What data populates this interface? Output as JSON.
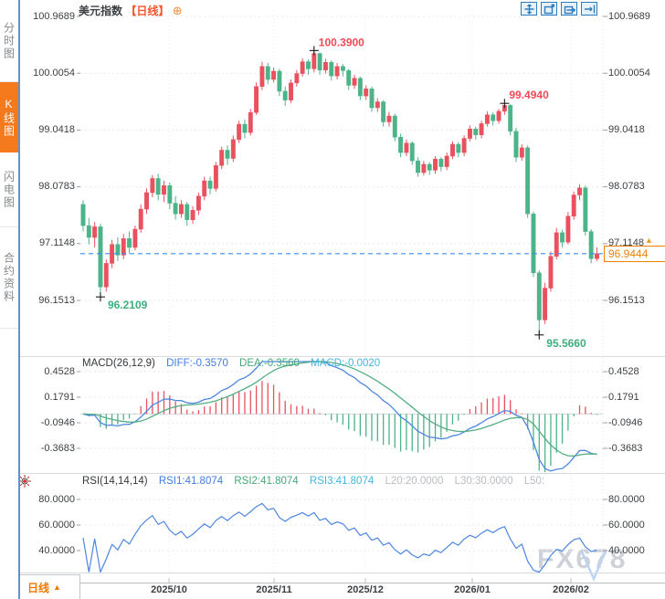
{
  "sidebar": {
    "tabs": [
      {
        "label": "分时图",
        "active": false
      },
      {
        "label": "K线图",
        "active": true
      },
      {
        "label": "闪电图",
        "active": false
      },
      {
        "label": "合约资料",
        "active": false
      }
    ]
  },
  "header": {
    "instrument": "美元指数",
    "period_tag": "【日线】",
    "add_icon": "⊕"
  },
  "toolbar": {
    "icons": [
      "pan-tool",
      "zoom-area",
      "zoom-bars",
      "goto-latest"
    ]
  },
  "main_chart": {
    "y_ticks": [
      "100.9689",
      "100.0054",
      "99.0418",
      "98.0783",
      "97.1148",
      "96.1513"
    ],
    "current_price": "96.9444",
    "up_arrow": "▲",
    "x_labels": [
      "2025/10",
      "2025/11",
      "2025/12",
      "2026/01",
      "2026/02"
    ]
  },
  "macd_panel": {
    "title": "MACD(26,12,9)",
    "diff_label": "DIFF:-0.3570",
    "dea_label": "DEA:-0.3560",
    "macd_label": "MACD:-0.0020",
    "y_ticks": [
      "0.4528",
      "0.1791",
      "-0.0946",
      "-0.3683"
    ]
  },
  "rsi_panel": {
    "title": "RSI(14,14,14)",
    "rsi1_label": "RSI1:41.8074",
    "rsi2_label": "RSI2:41.8074",
    "rsi3_label": "RSI3:41.8074",
    "l20_label": "L20:20.0000",
    "l30_label": "L30:30.0000",
    "l50_label": "L50:",
    "y_ticks": [
      "80.0000",
      "60.0000",
      "40.0000"
    ]
  },
  "bottom_bar": {
    "period": "日线",
    "arrow": "▲"
  },
  "watermark": "FX678",
  "colors": {
    "up": "#e9515e",
    "down": "#4db389",
    "diff_line": "#4d86e0",
    "dea_line": "#52ae82",
    "rsi_line": "#4d86e0",
    "current_line": "#3b8df0",
    "accent_orange": "#f07800",
    "annotation_high": "#ef4a55",
    "annotation_low": "#3fae7e"
  },
  "chart_data": {
    "type": "candlestick",
    "title": "美元指数 日线",
    "x_labels": [
      "2025/10",
      "2025/11",
      "2025/12",
      "2026/01",
      "2026/02"
    ],
    "y_ticks_values": [
      100.9689,
      100.0054,
      99.0418,
      98.0783,
      97.1148,
      96.1513
    ],
    "y_range": [
      95.3,
      101.2
    ],
    "current_price": 96.9444,
    "annotations": [
      {
        "text": "100.3900",
        "value": 100.39,
        "candle": 40,
        "kind": "high"
      },
      {
        "text": "99.4940",
        "value": 99.494,
        "candle": 73,
        "kind": "high"
      },
      {
        "text": "96.2109",
        "value": 96.2109,
        "candle": 3,
        "kind": "low"
      },
      {
        "text": "95.5660",
        "value": 95.566,
        "candle": 79,
        "kind": "low"
      }
    ],
    "candles_ohlc": [
      [
        97.78,
        97.85,
        97.32,
        97.42
      ],
      [
        97.42,
        97.55,
        97.1,
        97.22
      ],
      [
        97.22,
        97.48,
        97.05,
        97.4
      ],
      [
        97.4,
        97.45,
        96.2109,
        96.38
      ],
      [
        96.38,
        96.85,
        96.3,
        96.78
      ],
      [
        96.78,
        97.18,
        96.7,
        97.1
      ],
      [
        97.1,
        97.22,
        96.82,
        96.92
      ],
      [
        96.92,
        97.28,
        96.85,
        97.2
      ],
      [
        97.2,
        97.32,
        96.95,
        97.05
      ],
      [
        97.05,
        97.42,
        97.0,
        97.36
      ],
      [
        97.36,
        97.78,
        97.3,
        97.7
      ],
      [
        97.7,
        98.05,
        97.62,
        97.98
      ],
      [
        97.98,
        98.28,
        97.9,
        98.22
      ],
      [
        98.22,
        98.3,
        97.85,
        97.95
      ],
      [
        97.95,
        98.18,
        97.82,
        98.1
      ],
      [
        98.1,
        98.15,
        97.7,
        97.8
      ],
      [
        97.8,
        97.92,
        97.52,
        97.62
      ],
      [
        97.62,
        97.85,
        97.55,
        97.78
      ],
      [
        97.78,
        97.82,
        97.42,
        97.52
      ],
      [
        97.52,
        97.75,
        97.45,
        97.68
      ],
      [
        97.68,
        97.98,
        97.6,
        97.92
      ],
      [
        97.92,
        98.25,
        97.85,
        98.18
      ],
      [
        98.18,
        98.25,
        97.95,
        98.05
      ],
      [
        98.05,
        98.5,
        98.0,
        98.44
      ],
      [
        98.44,
        98.76,
        98.38,
        98.7
      ],
      [
        98.7,
        98.78,
        98.45,
        98.56
      ],
      [
        98.56,
        98.95,
        98.5,
        98.88
      ],
      [
        98.88,
        99.2,
        98.82,
        99.14
      ],
      [
        99.14,
        99.22,
        98.9,
        99.0
      ],
      [
        99.0,
        99.4,
        98.95,
        99.34
      ],
      [
        99.34,
        99.85,
        99.3,
        99.78
      ],
      [
        99.78,
        100.2,
        99.72,
        100.12
      ],
      [
        100.12,
        100.18,
        99.82,
        99.9
      ],
      [
        99.9,
        100.1,
        99.85,
        100.04
      ],
      [
        100.04,
        100.08,
        99.62,
        99.7
      ],
      [
        99.7,
        99.78,
        99.45,
        99.55
      ],
      [
        99.55,
        99.9,
        99.5,
        99.84
      ],
      [
        99.84,
        100.06,
        99.78,
        100.0
      ],
      [
        100.0,
        100.26,
        99.95,
        100.2
      ],
      [
        100.2,
        100.24,
        99.98,
        100.08
      ],
      [
        100.08,
        100.39,
        100.02,
        100.34
      ],
      [
        100.34,
        100.36,
        99.98,
        100.06
      ],
      [
        100.06,
        100.25,
        100.0,
        100.19
      ],
      [
        100.19,
        100.22,
        99.88,
        99.96
      ],
      [
        99.96,
        100.18,
        99.9,
        100.12
      ],
      [
        100.12,
        100.16,
        99.95,
        100.05
      ],
      [
        100.05,
        100.08,
        99.72,
        99.8
      ],
      [
        99.8,
        99.98,
        99.74,
        99.92
      ],
      [
        99.92,
        99.95,
        99.55,
        99.62
      ],
      [
        99.62,
        99.8,
        99.55,
        99.74
      ],
      [
        99.74,
        99.78,
        99.35,
        99.42
      ],
      [
        99.42,
        99.58,
        99.35,
        99.52
      ],
      [
        99.52,
        99.55,
        99.1,
        99.18
      ],
      [
        99.18,
        99.35,
        99.1,
        99.28
      ],
      [
        99.28,
        99.32,
        98.85,
        98.92
      ],
      [
        98.92,
        98.98,
        98.58,
        98.66
      ],
      [
        98.66,
        98.88,
        98.6,
        98.82
      ],
      [
        98.82,
        98.85,
        98.45,
        98.52
      ],
      [
        98.52,
        98.58,
        98.25,
        98.32
      ],
      [
        98.32,
        98.52,
        98.27,
        98.46
      ],
      [
        98.46,
        98.5,
        98.28,
        98.36
      ],
      [
        98.36,
        98.6,
        98.3,
        98.55
      ],
      [
        98.55,
        98.58,
        98.34,
        98.42
      ],
      [
        98.42,
        98.66,
        98.36,
        98.6
      ],
      [
        98.6,
        98.85,
        98.55,
        98.8
      ],
      [
        98.8,
        98.84,
        98.58,
        98.66
      ],
      [
        98.66,
        98.95,
        98.6,
        98.9
      ],
      [
        98.9,
        99.12,
        98.85,
        99.06
      ],
      [
        99.06,
        99.1,
        98.88,
        98.96
      ],
      [
        98.96,
        99.2,
        98.9,
        99.15
      ],
      [
        99.15,
        99.36,
        99.1,
        99.3
      ],
      [
        99.3,
        99.34,
        99.12,
        99.2
      ],
      [
        99.2,
        99.4,
        99.15,
        99.36
      ],
      [
        99.36,
        99.494,
        99.3,
        99.46
      ],
      [
        99.46,
        99.48,
        98.95,
        99.02
      ],
      [
        99.02,
        99.08,
        98.5,
        98.58
      ],
      [
        98.58,
        98.8,
        98.52,
        98.74
      ],
      [
        98.74,
        98.78,
        97.55,
        97.62
      ],
      [
        97.62,
        97.66,
        96.55,
        96.62
      ],
      [
        96.62,
        96.66,
        95.566,
        95.82
      ],
      [
        95.82,
        96.45,
        95.75,
        96.36
      ],
      [
        96.36,
        96.98,
        96.3,
        96.9
      ],
      [
        96.9,
        97.38,
        96.85,
        97.3
      ],
      [
        97.3,
        97.35,
        97.05,
        97.14
      ],
      [
        97.14,
        97.65,
        97.1,
        97.58
      ],
      [
        97.58,
        98.0,
        97.52,
        97.94
      ],
      [
        97.94,
        98.12,
        97.85,
        98.06
      ],
      [
        98.06,
        98.1,
        97.25,
        97.32
      ],
      [
        97.32,
        97.36,
        96.78,
        96.86
      ],
      [
        96.86,
        97.05,
        96.82,
        96.9444
      ]
    ],
    "macd": {
      "params": [
        26,
        12,
        9
      ],
      "ticks": [
        0.4528,
        0.1791,
        -0.0946,
        -0.3683
      ],
      "last": {
        "diff": -0.357,
        "dea": -0.356,
        "macd": -0.002
      }
    },
    "rsi": {
      "params": [
        14,
        14,
        14
      ],
      "ticks": [
        80,
        60,
        40
      ],
      "levels": {
        "l20": 20.0,
        "l30": 30.0
      },
      "last": {
        "rsi1": 41.8074,
        "rsi2": 41.8074,
        "rsi3": 41.8074
      }
    }
  }
}
